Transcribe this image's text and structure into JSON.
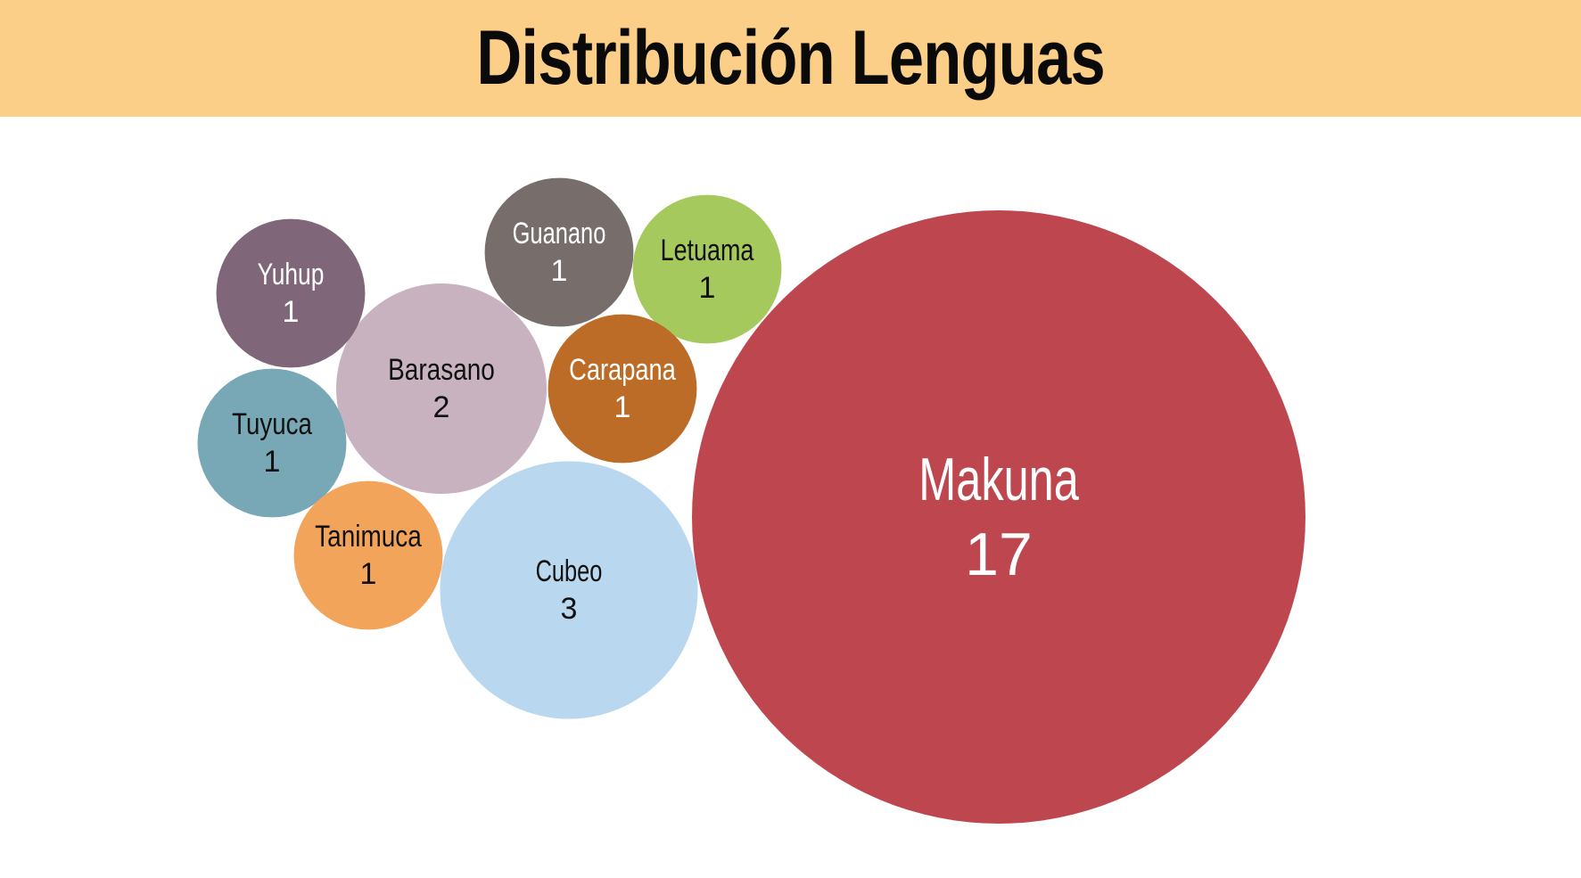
{
  "title": "Distribución Lenguas",
  "colors": {
    "header_bg": "#fbcf87",
    "title_text": "#0a0a0a"
  },
  "chart_data": {
    "type": "bubble",
    "title": "Distribución Lenguas",
    "series": [
      {
        "name": "Makuna",
        "value": 17,
        "color": "#be464e",
        "text_color": "#ffffff"
      },
      {
        "name": "Cubeo",
        "value": 3,
        "color": "#bad7f0",
        "text_color": "#111111"
      },
      {
        "name": "Barasano",
        "value": 2,
        "color": "#c8b2c0",
        "text_color": "#111111"
      },
      {
        "name": "Yuhup",
        "value": 1,
        "color": "#7f6779",
        "text_color": "#ffffff"
      },
      {
        "name": "Tuyuca",
        "value": 1,
        "color": "#78a8b5",
        "text_color": "#111111"
      },
      {
        "name": "Tanimuca",
        "value": 1,
        "color": "#f3a45b",
        "text_color": "#111111"
      },
      {
        "name": "Guanano",
        "value": 1,
        "color": "#776e6c",
        "text_color": "#ffffff"
      },
      {
        "name": "Letuama",
        "value": 1,
        "color": "#a6c95d",
        "text_color": "#111111"
      },
      {
        "name": "Carapana",
        "value": 1,
        "color": "#bd6c27",
        "text_color": "#ffffff"
      }
    ]
  }
}
